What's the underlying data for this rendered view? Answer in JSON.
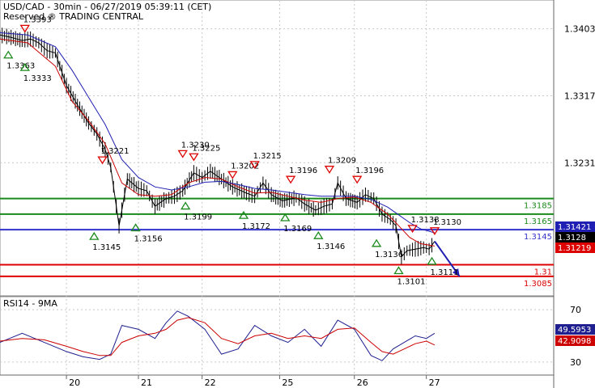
{
  "header": {
    "title": "USD/CAD - 30min - 06/27/2019 05:39:11 (CET)",
    "subtitle": "Reserved ® TRADING CENTRAL"
  },
  "chart_data": [
    {
      "type": "line",
      "panel": "price",
      "ylim": [
        1.306,
        1.344
      ],
      "xlim": [
        0,
        10
      ],
      "y_ticks": [
        1.3403,
        1.3317,
        1.3231
      ],
      "x_ticks": [
        {
          "label": "20",
          "x": 1.2
        },
        {
          "label": "21",
          "x": 2.5
        },
        {
          "label": "22",
          "x": 3.65
        },
        {
          "label": "25",
          "x": 5.05
        },
        {
          "label": "26",
          "x": 6.4
        },
        {
          "label": "27",
          "x": 7.7
        }
      ],
      "grid": true,
      "series": [
        {
          "kind": "price",
          "color": "#000000",
          "x": [
            0,
            0.2,
            0.4,
            0.55,
            0.7,
            0.85,
            1.0,
            1.2,
            1.4,
            1.6,
            1.75,
            1.9,
            2.0,
            2.15,
            2.3,
            2.5,
            2.65,
            2.8,
            3.0,
            3.15,
            3.3,
            3.5,
            3.65,
            3.8,
            4.0,
            4.2,
            4.45,
            4.6,
            4.75,
            4.9,
            5.1,
            5.35,
            5.5,
            5.7,
            5.85,
            6.0,
            6.1,
            6.25,
            6.45,
            6.6,
            6.75,
            6.9,
            7.05,
            7.15,
            7.25,
            7.35,
            7.5,
            7.65,
            7.75,
            7.85
          ],
          "y": [
            1.3395,
            1.3392,
            1.3388,
            1.339,
            1.3385,
            1.3375,
            1.3372,
            1.333,
            1.3305,
            1.3282,
            1.3268,
            1.3248,
            1.3225,
            1.315,
            1.321,
            1.3198,
            1.3195,
            1.3175,
            1.3185,
            1.3188,
            1.3195,
            1.3218,
            1.3212,
            1.322,
            1.321,
            1.32,
            1.3192,
            1.3188,
            1.3205,
            1.319,
            1.3182,
            1.3186,
            1.3178,
            1.317,
            1.3175,
            1.3178,
            1.3205,
            1.3185,
            1.318,
            1.319,
            1.3185,
            1.3165,
            1.3158,
            1.315,
            1.311,
            1.3118,
            1.312,
            1.3122,
            1.312,
            1.313
          ]
        },
        {
          "kind": "ma-fast",
          "color": "#cc0000",
          "x": [
            0,
            0.5,
            1.0,
            1.3,
            1.6,
            1.9,
            2.2,
            2.5,
            2.8,
            3.1,
            3.4,
            3.7,
            4.0,
            4.3,
            4.6,
            4.9,
            5.2,
            5.5,
            5.8,
            6.1,
            6.4,
            6.7,
            7.0,
            7.2,
            7.4,
            7.6,
            7.85
          ],
          "y": [
            1.339,
            1.3385,
            1.3355,
            1.331,
            1.3285,
            1.3255,
            1.3205,
            1.319,
            1.3188,
            1.319,
            1.3205,
            1.3212,
            1.321,
            1.32,
            1.3192,
            1.3193,
            1.3188,
            1.3183,
            1.318,
            1.3185,
            1.3187,
            1.318,
            1.3165,
            1.315,
            1.3135,
            1.3127,
            1.3124
          ]
        },
        {
          "kind": "ma-slow",
          "color": "#1f1fb4",
          "x": [
            0,
            0.5,
            1.0,
            1.3,
            1.6,
            1.9,
            2.2,
            2.5,
            2.8,
            3.1,
            3.4,
            3.7,
            4.0,
            4.3,
            4.6,
            4.9,
            5.2,
            5.5,
            5.8,
            6.1,
            6.4,
            6.7,
            7.0,
            7.2,
            7.4,
            7.6,
            7.85
          ],
          "y": [
            1.3398,
            1.3395,
            1.338,
            1.335,
            1.3315,
            1.328,
            1.3235,
            1.3212,
            1.32,
            1.3196,
            1.32,
            1.3206,
            1.3207,
            1.3203,
            1.3198,
            1.3196,
            1.3193,
            1.319,
            1.3188,
            1.3188,
            1.3188,
            1.3184,
            1.3174,
            1.3164,
            1.3154,
            1.3146,
            1.3141
          ]
        }
      ],
      "h_lines": [
        {
          "y": 1.3185,
          "color": "#1a8a1a",
          "label": "1.3185"
        },
        {
          "y": 1.3165,
          "color": "#1a8a1a",
          "label": "1.3165"
        },
        {
          "y": 1.3145,
          "color": "#3333cc",
          "label": "1.3145"
        },
        {
          "y": 1.31,
          "color": "#dd0000",
          "label": "1.31"
        },
        {
          "y": 1.3085,
          "color": "#dd0000",
          "label": "1.3085"
        }
      ],
      "arrow": {
        "x": [
          7.85,
          8.3
        ],
        "y": [
          1.313,
          1.3085
        ],
        "color": "#1f1fb4"
      },
      "price_boxes": [
        {
          "value": "1.31421",
          "color": "#1f1fb4"
        },
        {
          "value": "1.3128",
          "color": "#000000"
        },
        {
          "value": "1.31219",
          "color": "#dd0000"
        }
      ],
      "markers": [
        {
          "kind": "high",
          "x": 0.45,
          "y": 1.3395,
          "label": "1.3393"
        },
        {
          "kind": "low",
          "x": 0.15,
          "y": 1.3378,
          "label": "1.3363"
        },
        {
          "kind": "low",
          "x": 0.45,
          "y": 1.3362,
          "label": "1.3333"
        },
        {
          "kind": "high",
          "x": 1.85,
          "y": 1.3226,
          "label": "1.3221"
        },
        {
          "kind": "low",
          "x": 1.7,
          "y": 1.3145,
          "label": "1.3145"
        },
        {
          "kind": "low",
          "x": 2.45,
          "y": 1.3156,
          "label": "1.3156"
        },
        {
          "kind": "high",
          "x": 3.3,
          "y": 1.3234,
          "label": "1.3230"
        },
        {
          "kind": "high",
          "x": 3.5,
          "y": 1.323,
          "label": "1.3225"
        },
        {
          "kind": "low",
          "x": 3.35,
          "y": 1.3184,
          "label": "1.3199"
        },
        {
          "kind": "high",
          "x": 4.2,
          "y": 1.3207,
          "label": "1.3202"
        },
        {
          "kind": "high",
          "x": 4.6,
          "y": 1.322,
          "label": "1.3215"
        },
        {
          "kind": "low",
          "x": 4.4,
          "y": 1.3172,
          "label": "1.3172"
        },
        {
          "kind": "high",
          "x": 5.25,
          "y": 1.3201,
          "label": "1.3196"
        },
        {
          "kind": "low",
          "x": 5.15,
          "y": 1.3169,
          "label": "1.3169"
        },
        {
          "kind": "high",
          "x": 5.95,
          "y": 1.3214,
          "label": "1.3209"
        },
        {
          "kind": "low",
          "x": 5.75,
          "y": 1.3146,
          "label": "1.3146"
        },
        {
          "kind": "high",
          "x": 6.45,
          "y": 1.3201,
          "label": "1.3196"
        },
        {
          "kind": "low",
          "x": 6.8,
          "y": 1.3136,
          "label": "1.3136"
        },
        {
          "kind": "low",
          "x": 7.2,
          "y": 1.3101,
          "label": "1.3101"
        },
        {
          "kind": "high",
          "x": 7.45,
          "y": 1.3138,
          "label": "1.3138"
        },
        {
          "kind": "high",
          "x": 7.85,
          "y": 1.3135,
          "label": "1.3130"
        },
        {
          "kind": "low",
          "x": 7.8,
          "y": 1.3113,
          "label": "1.3111"
        }
      ]
    },
    {
      "type": "line",
      "panel": "rsi",
      "title": "RSI14 - 9MA",
      "ylim": [
        20,
        80
      ],
      "y_ticks": [
        70,
        30
      ],
      "series": [
        {
          "name": "RSI14",
          "color": "#1f1f8f",
          "x": [
            0,
            0.4,
            0.8,
            1.2,
            1.5,
            1.8,
            2.0,
            2.2,
            2.5,
            2.8,
            3.0,
            3.2,
            3.4,
            3.7,
            4.0,
            4.3,
            4.6,
            4.9,
            5.2,
            5.5,
            5.8,
            6.1,
            6.4,
            6.7,
            6.9,
            7.1,
            7.3,
            7.5,
            7.7,
            7.85
          ],
          "y": [
            45,
            52,
            45,
            38,
            34,
            32,
            36,
            58,
            55,
            48,
            60,
            69,
            65,
            55,
            36,
            40,
            58,
            50,
            45,
            55,
            42,
            62,
            55,
            35,
            31,
            40,
            45,
            50,
            48,
            52
          ]
        },
        {
          "name": "9MA",
          "color": "#cc0000",
          "x": [
            0,
            0.4,
            0.8,
            1.2,
            1.5,
            1.8,
            2.0,
            2.2,
            2.5,
            2.8,
            3.0,
            3.2,
            3.4,
            3.7,
            4.0,
            4.3,
            4.6,
            4.9,
            5.2,
            5.5,
            5.8,
            6.1,
            6.4,
            6.7,
            6.9,
            7.1,
            7.3,
            7.5,
            7.7,
            7.85
          ],
          "y": [
            46,
            48,
            47,
            42,
            38,
            35,
            35,
            45,
            50,
            52,
            55,
            62,
            64,
            60,
            48,
            44,
            50,
            52,
            48,
            50,
            48,
            55,
            56,
            45,
            38,
            36,
            40,
            44,
            46,
            43
          ]
        }
      ],
      "value_boxes": [
        {
          "value": "49.5953",
          "color": "#1f1f8f"
        },
        {
          "value": "42.9098",
          "color": "#cc0000"
        }
      ]
    }
  ]
}
